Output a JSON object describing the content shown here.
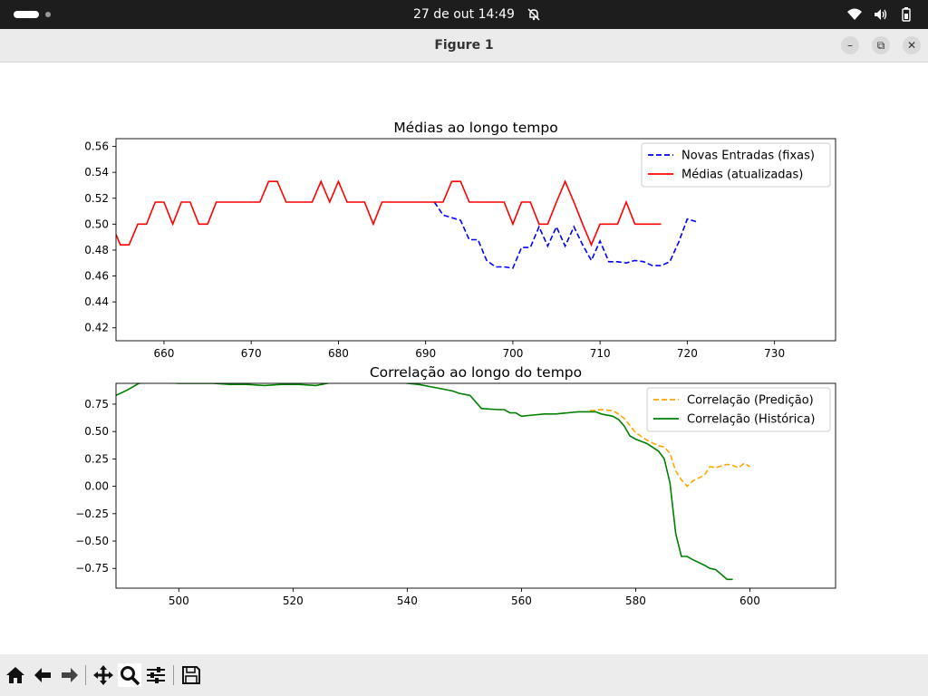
{
  "topbar": {
    "clock": "27 de out  14:49"
  },
  "window": {
    "title": "Figure 1",
    "min": "–",
    "max": "⧉",
    "close": "✕"
  },
  "toolbar": {
    "icons": [
      "home-icon",
      "back-icon",
      "forward-icon",
      "pan-icon",
      "zoom-icon",
      "configure-icon",
      "save-icon"
    ]
  },
  "chart_data": [
    {
      "type": "line",
      "title": "Médias ao longo tempo",
      "xlabel": "",
      "ylabel": "",
      "xlim": [
        654.5,
        737
      ],
      "ylim": [
        0.41,
        0.566
      ],
      "xticks": [
        660,
        670,
        680,
        690,
        700,
        710,
        720,
        730
      ],
      "yticks": [
        0.42,
        0.44,
        0.46,
        0.48,
        0.5,
        0.52,
        0.54,
        0.56
      ],
      "legend": "top-right",
      "series": [
        {
          "name": "Novas Entradas (fixas)",
          "color": "#0000ff",
          "dash": true,
          "x": [
            691,
            692,
            693,
            694,
            695,
            696,
            697,
            698,
            699,
            700,
            701,
            702,
            703,
            704,
            705,
            706,
            707,
            708,
            709,
            710,
            711,
            712,
            713,
            714,
            715,
            716,
            717,
            718,
            719,
            720,
            721
          ],
          "y": [
            0.517,
            0.507,
            0.505,
            0.503,
            0.488,
            0.488,
            0.472,
            0.467,
            0.467,
            0.466,
            0.482,
            0.482,
            0.498,
            0.483,
            0.498,
            0.483,
            0.498,
            0.484,
            0.472,
            0.487,
            0.471,
            0.471,
            0.47,
            0.472,
            0.471,
            0.468,
            0.468,
            0.471,
            0.486,
            0.504,
            0.502
          ]
        },
        {
          "name": "Médias (atualizadas)",
          "color": "#ff0000",
          "dash": false,
          "x": [
            654.5,
            655,
            656,
            657,
            658,
            659,
            660,
            661,
            662,
            663,
            664,
            665,
            666,
            667,
            668,
            669,
            670,
            671,
            672,
            673,
            674,
            675,
            676,
            677,
            678,
            679,
            680,
            681,
            682,
            683,
            684,
            685,
            686,
            687,
            688,
            689,
            690,
            691,
            692,
            693,
            694,
            695,
            696,
            697,
            698,
            699,
            700,
            701,
            702,
            703,
            704,
            705,
            706,
            707,
            708,
            709,
            710,
            711,
            712,
            713,
            714,
            715,
            716,
            717
          ],
          "y": [
            0.492,
            0.484,
            0.484,
            0.5,
            0.5,
            0.517,
            0.517,
            0.5,
            0.517,
            0.517,
            0.5,
            0.5,
            0.517,
            0.517,
            0.517,
            0.517,
            0.517,
            0.517,
            0.533,
            0.533,
            0.517,
            0.517,
            0.517,
            0.517,
            0.533,
            0.517,
            0.533,
            0.517,
            0.517,
            0.517,
            0.5,
            0.517,
            0.517,
            0.517,
            0.517,
            0.517,
            0.517,
            0.517,
            0.517,
            0.533,
            0.533,
            0.517,
            0.517,
            0.517,
            0.517,
            0.517,
            0.5,
            0.517,
            0.517,
            0.5,
            0.5,
            0.517,
            0.533,
            0.517,
            0.5,
            0.484,
            0.5,
            0.5,
            0.5,
            0.517,
            0.5,
            0.5,
            0.5,
            0.5
          ]
        }
      ]
    },
    {
      "type": "line",
      "title": "Correlação ao longo do tempo",
      "xlabel": "",
      "ylabel": "",
      "xlim": [
        489,
        615
      ],
      "ylim": [
        -0.93,
        0.94
      ],
      "xticks": [
        500,
        520,
        540,
        560,
        580,
        600
      ],
      "yticks": [
        0.75,
        0.5,
        0.25,
        0.0,
        -0.25,
        -0.5,
        -0.75
      ],
      "ytick_labels": [
        "0.75",
        "0.50",
        "0.25",
        "0.00",
        "−0.25",
        "−0.50",
        "−0.75"
      ],
      "legend": "top-right",
      "series": [
        {
          "name": "Correlação (Predição)",
          "color": "#ffa500",
          "dash": true,
          "x": [
            572,
            574,
            576,
            577,
            578,
            580,
            582,
            584,
            585,
            586,
            587,
            588,
            589,
            590,
            592,
            593,
            594,
            596,
            597,
            598,
            599,
            600
          ],
          "y": [
            0.69,
            0.7,
            0.69,
            0.66,
            0.62,
            0.49,
            0.42,
            0.37,
            0.36,
            0.3,
            0.14,
            0.06,
            0.0,
            0.05,
            0.1,
            0.18,
            0.17,
            0.2,
            0.19,
            0.17,
            0.21,
            0.18
          ]
        },
        {
          "name": "Correlação (Histórica)",
          "color": "#008000",
          "dash": false,
          "x": [
            489,
            491,
            493,
            495,
            497,
            500,
            503,
            506,
            509,
            512,
            515,
            518,
            521,
            524,
            526,
            527,
            530,
            535,
            537,
            538,
            540,
            542,
            544,
            546,
            548,
            549,
            551,
            553,
            556,
            557,
            558,
            559,
            560,
            562,
            564,
            566,
            568,
            570,
            572,
            573,
            574,
            576,
            577,
            578,
            579,
            580,
            582,
            584,
            585,
            586,
            587,
            588,
            589,
            590,
            592,
            593,
            594,
            596,
            597
          ],
          "y": [
            0.83,
            0.88,
            0.94,
            0.95,
            0.95,
            0.94,
            0.94,
            0.94,
            0.93,
            0.93,
            0.92,
            0.93,
            0.93,
            0.92,
            0.94,
            0.95,
            0.97,
            0.97,
            0.96,
            0.96,
            0.94,
            0.93,
            0.91,
            0.89,
            0.87,
            0.85,
            0.83,
            0.71,
            0.7,
            0.7,
            0.67,
            0.67,
            0.64,
            0.65,
            0.66,
            0.66,
            0.67,
            0.68,
            0.68,
            0.68,
            0.66,
            0.64,
            0.61,
            0.55,
            0.46,
            0.43,
            0.39,
            0.32,
            0.25,
            0.03,
            -0.43,
            -0.64,
            -0.64,
            -0.67,
            -0.72,
            -0.75,
            -0.76,
            -0.85,
            -0.85
          ]
        }
      ]
    }
  ]
}
